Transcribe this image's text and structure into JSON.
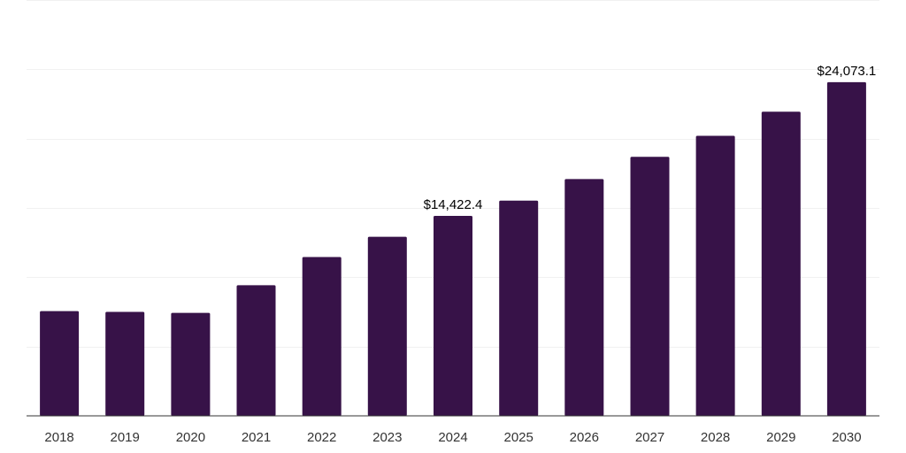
{
  "chart_data": {
    "type": "bar",
    "categories": [
      "2018",
      "2019",
      "2020",
      "2021",
      "2022",
      "2023",
      "2024",
      "2025",
      "2026",
      "2027",
      "2028",
      "2029",
      "2030"
    ],
    "series": [
      {
        "values": [
          7560,
          7500,
          7430,
          9420,
          11460,
          12920,
          14422.4,
          15530,
          17080,
          18680,
          20200,
          21940,
          24073.1
        ]
      }
    ],
    "data_labels": [
      {
        "index": 6,
        "text": "$14,422.4"
      },
      {
        "index": 12,
        "text": "$24,073.1"
      }
    ],
    "ylim": [
      0,
      30000
    ],
    "y_gridlines": [
      5000,
      10000,
      15000,
      20000,
      25000,
      30000
    ],
    "grid": true,
    "legend": "none",
    "bar_color": "#371248",
    "title": "",
    "xlabel": "",
    "ylabel": ""
  }
}
